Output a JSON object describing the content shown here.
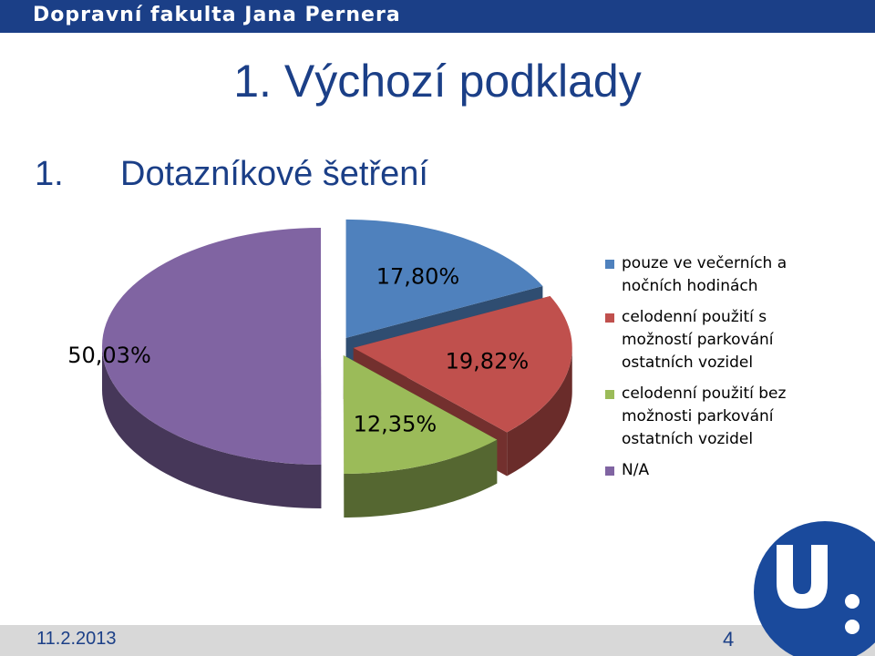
{
  "header": {
    "brand": "Dopravní fakulta Jana Pernera"
  },
  "slide": {
    "title": "1. Výchozí podklady",
    "subtitle_number": "1.",
    "subtitle_text": "Dotazníkové šetření"
  },
  "chart_data": {
    "type": "pie",
    "title": "",
    "three_d": true,
    "exploded": true,
    "legend_position": "right",
    "series": [
      {
        "name": "pouze ve večerních a nočních hodinách",
        "value": 17.8,
        "label": "17,80%",
        "color": "#4f81bd"
      },
      {
        "name": "celodenní použití s možností parkování ostatních vozidel",
        "value": 19.82,
        "label": "19,82%",
        "color": "#c0504d"
      },
      {
        "name": "celodenní použití bez možnosti parkování ostatních vozidel",
        "value": 12.35,
        "label": "12,35%",
        "color": "#9bbb59"
      },
      {
        "name": "N/A",
        "value": 50.03,
        "label": "50,03%",
        "color": "#8064a2"
      }
    ]
  },
  "footer": {
    "date": "11.2.2013",
    "page": "4"
  },
  "colors": {
    "brand": "#1b3f87",
    "footer_bg": "#d8d8d8",
    "logo_ring": "#1a4a9c"
  },
  "logo": {
    "icon": "university-logo-icon"
  }
}
